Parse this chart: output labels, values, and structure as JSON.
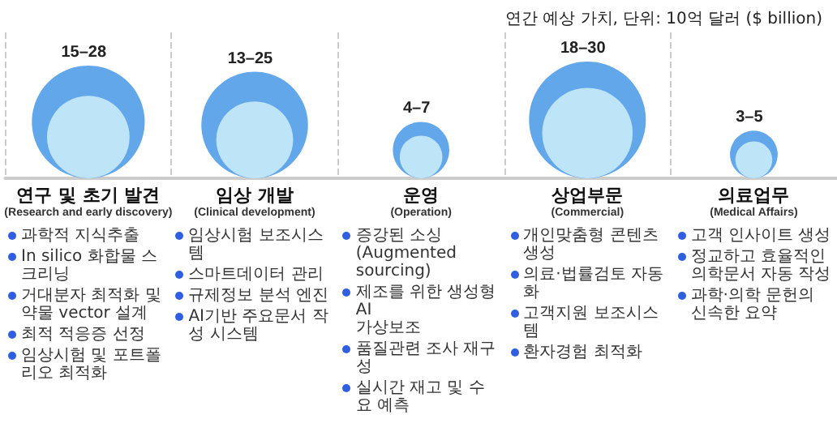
{
  "chart_data": {
    "type": "other",
    "title": "연간 예상 가치, 단위: 10억 달러 ($ billion)",
    "categories": [
      "연구 및 초기 발견\n(Research and early discovery)",
      "임상 개발\n(Clinical development)",
      "운영\n(Operation)",
      "상업부문\n(Commercial)",
      "의료업무\n(Medical Affairs)"
    ],
    "series": [
      {
        "color": "#63a7eb",
        "values": [
          28,
          25,
          7,
          30,
          5
        ],
        "value_labels": [
          "28",
          "25",
          "7",
          "30",
          "5"
        ]
      },
      {
        "color": "#bee4f8",
        "values": [
          15,
          13,
          4,
          18,
          3
        ],
        "value_labels": [
          "15–",
          "13–",
          "4–",
          "18–",
          "3–"
        ]
      }
    ],
    "annotations": [
      {
        "text": "과학적 지식추출",
        "x": "연구 및 초기 발견\n(Research and early discovery)"
      },
      {
        "text": "In silico 화합물 스크리닝",
        "x": "연구 및 초기 발견\n(Research and early discovery)"
      },
      {
        "text": "거대분자 최적화 및\n약물 vector 설계",
        "x": "연구 및 초기 발견\n(Research and early discovery)"
      },
      {
        "text": "최적 적응증 선정",
        "x": "연구 및 초기 발견\n(Research and early discovery)"
      },
      {
        "text": "임상시험 및 포트폴리오 최적화",
        "x": "연구 및 초기 발견\n(Research and early discovery)"
      },
      {
        "text": "임상시험 보조시스템",
        "x": "임상 개발\n(Clinical development)"
      },
      {
        "text": "스마트데이터 관리",
        "x": "임상 개발\n(Clinical development)"
      },
      {
        "text": "규제정보 분석 엔진",
        "x": "임상 개발\n(Clinical development)"
      },
      {
        "text": "AI기반 주요문서 작성 시스템",
        "x": "임상 개발\n(Clinical development)"
      },
      {
        "text": "증강된 소싱\n(Augmented sourcing)",
        "x": "운영\n(Operation)"
      },
      {
        "text": "제조를 위한 생성형 AI\n가상보조",
        "x": "운영\n(Operation)"
      },
      {
        "text": "품질관련 조사 재구성",
        "x": "운영\n(Operation)"
      },
      {
        "text": "실시간 재고 및 수요 예측",
        "x": "운영\n(Operation)"
      },
      {
        "text": "개인맞춤형 콘텐츠 생성",
        "x": "상업부문\n(Commercial)"
      },
      {
        "text": "의료·법률검토 자동화",
        "x": "상업부문\n(Commercial)"
      },
      {
        "text": "고객지원 보조시스템",
        "x": "상업부문\n(Commercial)"
      },
      {
        "text": "환자경험 최적화",
        "x": "상업부문\n(Commercial)"
      },
      {
        "text": "고객 인사이트 생성",
        "x": "의료업무\n(Medical Affairs)"
      },
      {
        "text": "정교하고 효율적인\n의학문서 자동 작성",
        "x": "의료업무\n(Medical Affairs)"
      },
      {
        "text": "과학·의학 문헌의\n신속한 요약",
        "x": "의료업무\n(Medical Affairs)"
      }
    ]
  }
}
